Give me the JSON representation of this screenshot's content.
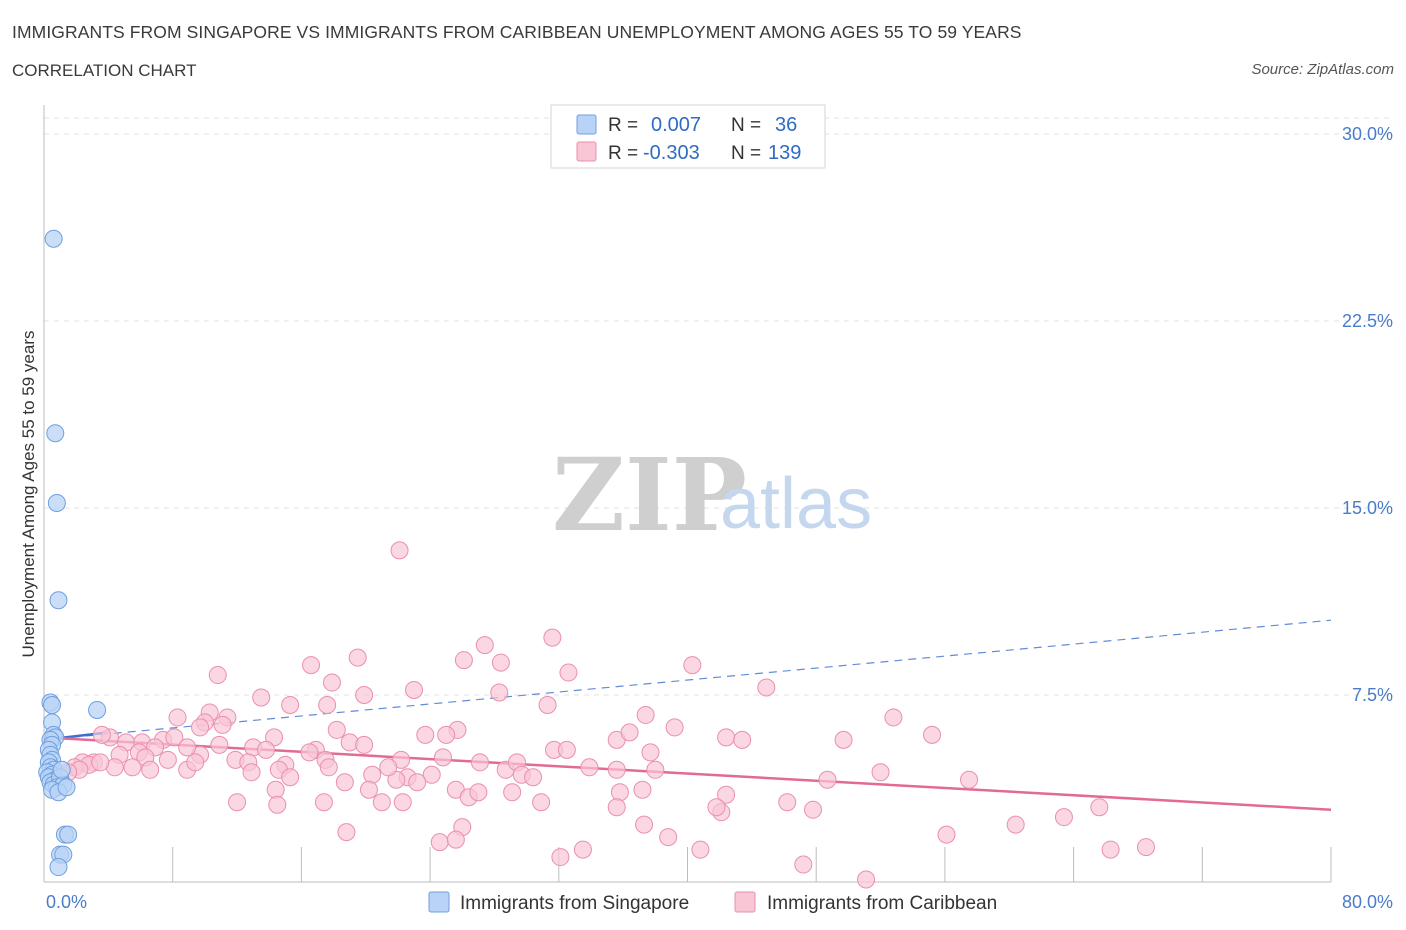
{
  "title": "IMMIGRANTS FROM SINGAPORE VS IMMIGRANTS FROM CARIBBEAN UNEMPLOYMENT AMONG AGES 55 TO 59 YEARS",
  "subtitle": "CORRELATION CHART",
  "source": "Source: ZipAtlas.com",
  "watermark": {
    "zip": "ZIP",
    "atlas": "atlas"
  },
  "colors": {
    "singapore_fill": "#b8d3f5",
    "singapore_stroke": "#6f9fe0",
    "singapore_line": "#3b6fd0",
    "caribbean_fill": "#f8c6d5",
    "caribbean_stroke": "#eb8fae",
    "caribbean_line": "#e26a95",
    "tick_text": "#4a7cc9",
    "grid": "#e2e2e2"
  },
  "chart_data": {
    "type": "scatter",
    "xlabel": "",
    "ylabel": "Unemployment Among Ages 55 to 59 years",
    "xlim": [
      0,
      80
    ],
    "ylim": [
      0,
      30
    ],
    "x_tick_labels": [
      "0.0%",
      "80.0%"
    ],
    "y_ticks": [
      7.5,
      15.0,
      22.5,
      30.0
    ],
    "y_tick_labels": [
      "7.5%",
      "15.0%",
      "22.5%",
      "30.0%"
    ],
    "legend": [
      {
        "r_label": "R =",
        "r_value": "0.007",
        "n_label": "N =",
        "n_value": "36"
      },
      {
        "r_label": "R =",
        "r_value": "-0.303",
        "n_label": "N =",
        "n_value": "139"
      }
    ],
    "series": [
      {
        "name": "Immigrants from Singapore",
        "trend": {
          "solid": [
            [
              0,
              5.7
            ],
            [
              4.0,
              6.0
            ]
          ],
          "dashed": [
            [
              0,
              5.7
            ],
            [
              80,
              10.5
            ]
          ]
        },
        "points": [
          [
            0.6,
            25.8
          ],
          [
            0.7,
            18.0
          ],
          [
            0.8,
            15.2
          ],
          [
            0.9,
            11.3
          ],
          [
            3.3,
            6.9
          ],
          [
            0.4,
            7.2
          ],
          [
            0.5,
            7.1
          ],
          [
            0.5,
            6.4
          ],
          [
            0.6,
            5.9
          ],
          [
            0.7,
            5.8
          ],
          [
            0.4,
            5.7
          ],
          [
            0.5,
            5.5
          ],
          [
            0.3,
            5.3
          ],
          [
            0.4,
            5.1
          ],
          [
            0.5,
            4.9
          ],
          [
            0.3,
            4.8
          ],
          [
            0.4,
            4.6
          ],
          [
            0.6,
            4.5
          ],
          [
            0.2,
            4.4
          ],
          [
            0.5,
            4.3
          ],
          [
            0.3,
            4.2
          ],
          [
            0.7,
            4.1
          ],
          [
            0.4,
            4.0
          ],
          [
            0.6,
            3.9
          ],
          [
            1.0,
            4.2
          ],
          [
            0.8,
            3.8
          ],
          [
            1.2,
            3.9
          ],
          [
            0.5,
            3.7
          ],
          [
            0.9,
            3.6
          ],
          [
            1.1,
            4.5
          ],
          [
            1.3,
            1.9
          ],
          [
            1.5,
            1.9
          ],
          [
            1.0,
            1.1
          ],
          [
            1.2,
            1.1
          ],
          [
            0.9,
            0.6
          ],
          [
            1.4,
            3.8
          ]
        ]
      },
      {
        "name": "Immigrants from Caribbean",
        "trend": {
          "solid": [
            [
              0,
              5.8
            ],
            [
              80,
              2.9
            ]
          ]
        },
        "points": [
          [
            22.1,
            13.3
          ],
          [
            31.6,
            9.8
          ],
          [
            27.4,
            9.5
          ],
          [
            19.5,
            9.0
          ],
          [
            26.1,
            8.9
          ],
          [
            28.4,
            8.8
          ],
          [
            16.6,
            8.7
          ],
          [
            40.3,
            8.7
          ],
          [
            32.6,
            8.4
          ],
          [
            10.8,
            8.3
          ],
          [
            17.9,
            8.0
          ],
          [
            44.9,
            7.8
          ],
          [
            23.0,
            7.7
          ],
          [
            28.3,
            7.6
          ],
          [
            19.9,
            7.5
          ],
          [
            13.5,
            7.4
          ],
          [
            15.3,
            7.1
          ],
          [
            17.6,
            7.1
          ],
          [
            31.3,
            7.1
          ],
          [
            10.3,
            6.8
          ],
          [
            37.4,
            6.7
          ],
          [
            8.3,
            6.6
          ],
          [
            11.4,
            6.6
          ],
          [
            52.8,
            6.6
          ],
          [
            10.0,
            6.4
          ],
          [
            11.1,
            6.3
          ],
          [
            9.7,
            6.2
          ],
          [
            18.2,
            6.1
          ],
          [
            25.7,
            6.1
          ],
          [
            39.2,
            6.2
          ],
          [
            14.3,
            5.8
          ],
          [
            4.1,
            5.8
          ],
          [
            19.0,
            5.6
          ],
          [
            23.7,
            5.9
          ],
          [
            25.0,
            5.9
          ],
          [
            35.6,
            5.7
          ],
          [
            42.4,
            5.8
          ],
          [
            43.4,
            5.7
          ],
          [
            49.7,
            5.7
          ],
          [
            55.2,
            5.9
          ],
          [
            5.1,
            5.6
          ],
          [
            6.1,
            5.6
          ],
          [
            7.4,
            5.7
          ],
          [
            8.1,
            5.8
          ],
          [
            10.9,
            5.5
          ],
          [
            13.0,
            5.4
          ],
          [
            13.8,
            5.3
          ],
          [
            16.9,
            5.3
          ],
          [
            19.9,
            5.5
          ],
          [
            24.8,
            5.0
          ],
          [
            31.7,
            5.3
          ],
          [
            32.5,
            5.3
          ],
          [
            37.7,
            5.2
          ],
          [
            6.9,
            5.4
          ],
          [
            4.7,
            5.1
          ],
          [
            5.9,
            5.2
          ],
          [
            6.3,
            5.0
          ],
          [
            7.7,
            4.9
          ],
          [
            9.7,
            5.1
          ],
          [
            11.9,
            4.9
          ],
          [
            12.7,
            4.8
          ],
          [
            15.0,
            4.7
          ],
          [
            17.5,
            4.9
          ],
          [
            22.2,
            4.9
          ],
          [
            27.1,
            4.8
          ],
          [
            28.7,
            4.5
          ],
          [
            29.4,
            4.8
          ],
          [
            3.1,
            4.8
          ],
          [
            4.4,
            4.6
          ],
          [
            5.5,
            4.6
          ],
          [
            6.6,
            4.5
          ],
          [
            8.9,
            4.5
          ],
          [
            12.9,
            4.4
          ],
          [
            14.6,
            4.5
          ],
          [
            20.4,
            4.3
          ],
          [
            22.6,
            4.2
          ],
          [
            24.1,
            4.3
          ],
          [
            29.7,
            4.3
          ],
          [
            30.4,
            4.2
          ],
          [
            35.6,
            4.5
          ],
          [
            38.0,
            4.5
          ],
          [
            52.0,
            4.4
          ],
          [
            48.7,
            4.1
          ],
          [
            2.4,
            4.8
          ],
          [
            2.8,
            4.7
          ],
          [
            3.5,
            4.8
          ],
          [
            1.9,
            4.6
          ],
          [
            2.2,
            4.5
          ],
          [
            1.5,
            4.4
          ],
          [
            15.3,
            4.2
          ],
          [
            18.7,
            4.0
          ],
          [
            21.9,
            4.1
          ],
          [
            23.2,
            4.0
          ],
          [
            14.4,
            3.7
          ],
          [
            20.2,
            3.7
          ],
          [
            25.6,
            3.7
          ],
          [
            26.4,
            3.4
          ],
          [
            27.0,
            3.6
          ],
          [
            29.1,
            3.6
          ],
          [
            35.8,
            3.6
          ],
          [
            37.2,
            3.7
          ],
          [
            42.4,
            3.5
          ],
          [
            30.9,
            3.2
          ],
          [
            14.5,
            3.1
          ],
          [
            17.4,
            3.2
          ],
          [
            21.0,
            3.2
          ],
          [
            22.3,
            3.2
          ],
          [
            42.1,
            2.8
          ],
          [
            46.2,
            3.2
          ],
          [
            47.8,
            2.9
          ],
          [
            57.5,
            4.1
          ],
          [
            65.6,
            3.0
          ],
          [
            41.8,
            3.0
          ],
          [
            35.6,
            3.0
          ],
          [
            37.3,
            2.3
          ],
          [
            26.0,
            2.2
          ],
          [
            18.8,
            2.0
          ],
          [
            24.6,
            1.6
          ],
          [
            25.6,
            1.7
          ],
          [
            38.8,
            1.8
          ],
          [
            40.8,
            1.3
          ],
          [
            47.2,
            0.7
          ],
          [
            51.1,
            0.1
          ],
          [
            33.5,
            1.3
          ],
          [
            63.4,
            2.6
          ],
          [
            56.1,
            1.9
          ],
          [
            60.4,
            2.3
          ],
          [
            66.3,
            1.3
          ],
          [
            68.5,
            1.4
          ],
          [
            32.1,
            1.0
          ],
          [
            8.9,
            5.4
          ],
          [
            16.5,
            5.2
          ],
          [
            3.6,
            5.9
          ],
          [
            9.4,
            4.8
          ],
          [
            17.7,
            4.6
          ],
          [
            21.4,
            4.6
          ],
          [
            33.9,
            4.6
          ],
          [
            12.0,
            3.2
          ],
          [
            36.4,
            6.0
          ]
        ]
      }
    ]
  }
}
